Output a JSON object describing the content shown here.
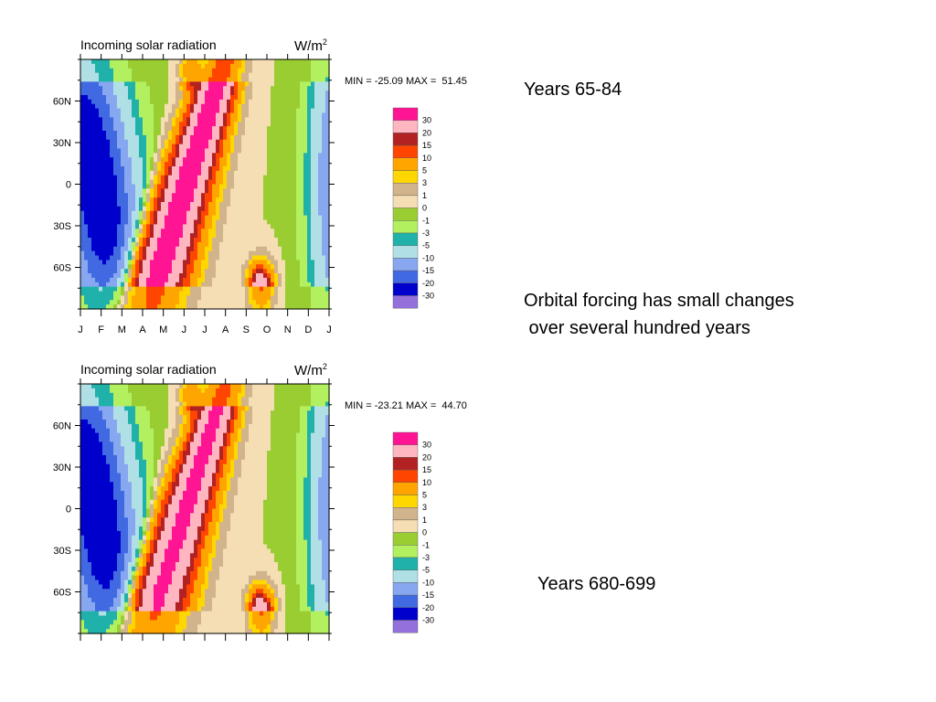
{
  "slide": {
    "label_top": "Years 65-84",
    "note_line1": "Orbital forcing has small changes",
    "note_line2": " over several hundred years",
    "label_bottom": "Years 680-699"
  },
  "legend": {
    "levels": [
      "30",
      "20",
      "15",
      "10",
      "5",
      "3",
      "1",
      "0",
      "-1",
      "-3",
      "-5",
      "-10",
      "-15",
      "-20",
      "-30"
    ],
    "colors": [
      "#ff1493",
      "#ffb6c1",
      "#b22222",
      "#ff4500",
      "#ffa500",
      "#ffd700",
      "#d2b48c",
      "#f5deb3",
      "#9acd32",
      "#b3f060",
      "#20b2aa",
      "#b0e0e6",
      "#87a8f0",
      "#4169e1",
      "#0000cd",
      "#9370db"
    ]
  },
  "chart_data": [
    {
      "type": "heatmap",
      "title": "Incoming solar radiation",
      "units": "W/m",
      "units_sup": "2",
      "min_max_label": "MIN = -25.09 MAX =  51.45",
      "min": -25.09,
      "max": 51.45,
      "x_tick_labels": [
        "J",
        "F",
        "M",
        "A",
        "M",
        "J",
        "J",
        "A",
        "S",
        "O",
        "N",
        "D",
        "J"
      ],
      "y_tick_labels": [
        "60N",
        "30N",
        "0",
        "30S",
        "60S"
      ],
      "y_tick_values": [
        60,
        30,
        0,
        -30,
        -60
      ],
      "ylim": [
        -90,
        90
      ],
      "xlim": [
        0,
        12
      ],
      "show_x_labels": true
    },
    {
      "type": "heatmap",
      "title": "Incoming solar radiation",
      "units": "W/m",
      "units_sup": "2",
      "min_max_label": "MIN = -23.21 MAX =  44.70",
      "min": -23.21,
      "max": 44.7,
      "x_tick_labels": [],
      "y_tick_labels": [
        "60N",
        "30N",
        "0",
        "30S",
        "60S"
      ],
      "y_tick_values": [
        60,
        30,
        0,
        -30,
        -60
      ],
      "ylim": [
        -90,
        90
      ],
      "xlim": [
        0,
        12
      ],
      "show_x_labels": false
    }
  ]
}
